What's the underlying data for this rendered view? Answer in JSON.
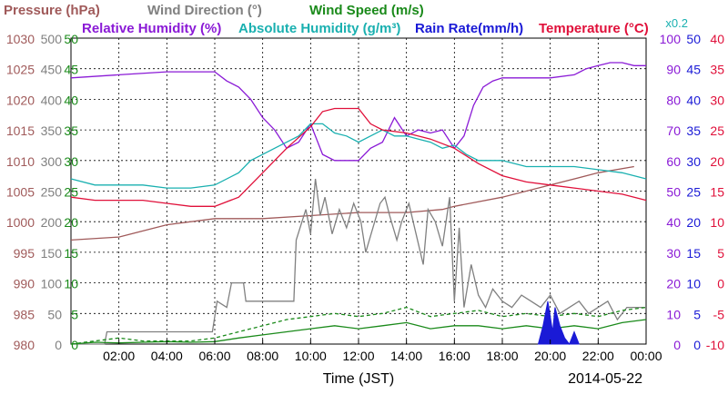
{
  "chart_data": {
    "type": "line",
    "date": "2014-05-22",
    "xlabel": "Time (JST)",
    "x_ticks": [
      "02:00",
      "04:00",
      "06:00",
      "08:00",
      "10:00",
      "12:00",
      "14:00",
      "16:00",
      "18:00",
      "20:00",
      "22:00",
      "00:00"
    ],
    "xlim": [
      0,
      24
    ],
    "grid": true,
    "legend": [
      {
        "label": "Pressure (hPa)",
        "color": "#a05a5a"
      },
      {
        "label": "Wind Direction (°)",
        "color": "#808080"
      },
      {
        "label": "Wind Speed (m/s)",
        "color": "#1a8a1a"
      },
      {
        "label": "Relative Humidity (%)",
        "color": "#8a1ad6"
      },
      {
        "label": "Absolute Humidity (g/m³)",
        "color": "#1ab0b0"
      },
      {
        "label": "Rain Rate(mm/h)",
        "color": "#1a1ad6"
      },
      {
        "label": "Temperature (°C)",
        "color": "#e0103a"
      }
    ],
    "abs_humidity_scale_note": "x0.2",
    "axes": {
      "pressure": {
        "ylim": [
          980,
          1030
        ],
        "ticks": [
          "980",
          "985",
          "990",
          "995",
          "1000",
          "1005",
          "1010",
          "1015",
          "1020",
          "1025",
          "1030"
        ],
        "color": "#a05a5a"
      },
      "wind_direction": {
        "ylim": [
          0,
          500
        ],
        "ticks": [
          "0",
          "50",
          "100",
          "150",
          "200",
          "250",
          "300",
          "350",
          "400",
          "450",
          "500"
        ],
        "color": "#808080"
      },
      "wind_speed": {
        "ylim": [
          0,
          50
        ],
        "ticks": [
          "0",
          "5",
          "10",
          "15",
          "20",
          "25",
          "30",
          "35",
          "40",
          "45",
          "50"
        ],
        "color": "#1a8a1a"
      },
      "relative_humidity": {
        "ylim": [
          0,
          100
        ],
        "ticks": [
          "0",
          "10",
          "20",
          "30",
          "40",
          "50",
          "60",
          "70",
          "80",
          "90",
          "100"
        ],
        "color": "#8a1ad6"
      },
      "rain_rate": {
        "ylim": [
          0,
          50
        ],
        "ticks": [
          "0",
          "5",
          "10",
          "15",
          "20",
          "25",
          "30",
          "35",
          "40",
          "45",
          "50"
        ],
        "color": "#1a1ad6"
      },
      "temperature": {
        "ylim": [
          -10,
          40
        ],
        "ticks": [
          "-10",
          "-5",
          "0",
          "5",
          "10",
          "15",
          "20",
          "25",
          "30",
          "35",
          "40"
        ],
        "color": "#e0103a"
      }
    },
    "series": [
      {
        "name": "Pressure (hPa)",
        "axis": "pressure",
        "color": "#a05a5a",
        "x": [
          0,
          2,
          4,
          6,
          8,
          10,
          12,
          14,
          15.5,
          16,
          18,
          20,
          22,
          23.5
        ],
        "y": [
          997,
          997.5,
          999.5,
          1000.5,
          1000.5,
          1001,
          1001.5,
          1001.5,
          1002,
          1002.5,
          1004,
          1006,
          1008,
          1009
        ]
      },
      {
        "name": "Wind Direction (°)",
        "axis": "wind_direction",
        "color": "#808080",
        "x": [
          0,
          1.4,
          1.5,
          2.8,
          5.9,
          6.1,
          6.5,
          6.7,
          7.2,
          7.3,
          7.9,
          8.1,
          9.3,
          9.4,
          9.8,
          10.0,
          10.2,
          10.4,
          10.6,
          10.9,
          11.2,
          11.5,
          11.8,
          12.1,
          12.3,
          12.6,
          12.9,
          13.1,
          13.3,
          13.6,
          13.8,
          14.1,
          14.4,
          14.7,
          14.9,
          15.2,
          15.5,
          15.8,
          16.0,
          16.2,
          16.4,
          16.7,
          17.0,
          17.3,
          17.6,
          18.0,
          18.4,
          18.8,
          19.2,
          19.6,
          20.0,
          20.4,
          20.8,
          21.2,
          21.6,
          22.0,
          22.4,
          22.8,
          23.2,
          23.6,
          24
        ],
        "y": [
          0,
          0,
          20,
          20,
          20,
          70,
          60,
          100,
          100,
          70,
          70,
          70,
          70,
          170,
          220,
          180,
          270,
          210,
          240,
          180,
          220,
          190,
          230,
          200,
          150,
          190,
          230,
          240,
          210,
          170,
          200,
          230,
          180,
          130,
          220,
          200,
          160,
          240,
          70,
          190,
          60,
          130,
          80,
          60,
          90,
          70,
          60,
          80,
          70,
          60,
          80,
          50,
          60,
          70,
          50,
          60,
          70,
          40,
          60,
          60,
          60
        ]
      },
      {
        "name": "Wind Speed (m/s)",
        "axis": "wind_speed",
        "color": "#1a8a1a",
        "x": [
          0,
          1,
          2,
          3,
          4,
          5,
          6,
          7,
          8,
          9,
          10,
          11,
          12,
          13,
          14,
          15,
          16,
          17,
          18,
          19,
          20,
          21,
          22,
          23,
          24
        ],
        "y": [
          0,
          0.3,
          0.2,
          0.3,
          0.4,
          0.3,
          0.4,
          1.0,
          1.5,
          2.0,
          2.5,
          3.0,
          2.5,
          3.0,
          3.5,
          2.5,
          3.0,
          3.0,
          2.5,
          3.0,
          2.5,
          3.0,
          2.5,
          3.5,
          4.0
        ]
      },
      {
        "name": "Wind Speed gust (m/s)",
        "axis": "wind_speed",
        "color": "#1a8a1a",
        "dashed": true,
        "x": [
          0,
          1,
          2,
          3,
          4,
          5,
          6,
          7,
          8,
          9,
          10,
          11,
          12,
          13,
          14,
          15,
          16,
          17,
          18,
          19,
          20,
          21,
          22,
          23,
          24
        ],
        "y": [
          0,
          0.5,
          1.0,
          0.5,
          0.5,
          0.5,
          1.0,
          2.0,
          3.0,
          4.0,
          4.5,
          5.0,
          4.5,
          5.0,
          6.0,
          4.5,
          5.0,
          5.5,
          4.5,
          5.0,
          4.5,
          5.0,
          4.5,
          5.5,
          6.0
        ]
      },
      {
        "name": "Relative Humidity (%)",
        "axis": "relative_humidity",
        "color": "#8a1ad6",
        "x": [
          0,
          2,
          4,
          6,
          6.5,
          7,
          7.5,
          8,
          8.5,
          9,
          9.5,
          10,
          10.5,
          11,
          11.5,
          12,
          12.5,
          13,
          13.5,
          14,
          14.5,
          15,
          15.5,
          16,
          16.4,
          16.8,
          17.2,
          17.6,
          18,
          19,
          20,
          21,
          21.5,
          22,
          22.5,
          23,
          23.5,
          24
        ],
        "y": [
          87,
          88,
          89,
          89,
          86,
          84,
          80,
          74,
          70,
          64,
          66,
          72,
          62,
          60,
          60,
          60,
          64,
          66,
          74,
          68,
          70,
          69,
          70,
          64,
          68,
          78,
          84,
          86,
          87,
          87,
          87,
          88,
          90,
          91,
          92,
          92,
          91,
          91
        ]
      },
      {
        "name": "Absolute Humidity (g/m³)",
        "axis": "relative_humidity",
        "color": "#1ab0b0",
        "x": [
          0,
          1,
          2,
          3,
          4,
          5,
          6,
          7,
          7.5,
          8,
          8.5,
          9,
          9.5,
          10,
          10.5,
          11,
          11.5,
          12,
          12.5,
          13,
          13.5,
          14,
          14.5,
          15,
          15.5,
          16,
          16.5,
          17,
          18,
          19,
          20,
          21,
          22,
          23,
          24
        ],
        "y": [
          54,
          52,
          52,
          52,
          51,
          51,
          52,
          56,
          60,
          62,
          64,
          66,
          68,
          72,
          72,
          69,
          68,
          66,
          68,
          70,
          68,
          68,
          67,
          66,
          64,
          65,
          62,
          60,
          60,
          58,
          58,
          58,
          57,
          56,
          54
        ]
      },
      {
        "name": "Rain Rate(mm/h)",
        "axis": "rain_rate",
        "color": "#1a1ad6",
        "x": [
          19.5,
          19.7,
          19.9,
          20.1,
          20.2,
          20.4,
          20.6,
          20.8,
          21.0,
          21.2
        ],
        "y": [
          0,
          3,
          7,
          2,
          6,
          3,
          1,
          0,
          2,
          0
        ]
      },
      {
        "name": "Temperature (°C)",
        "axis": "temperature",
        "color": "#e0103a",
        "x": [
          0,
          1,
          2,
          3,
          4,
          5,
          6,
          7,
          8,
          9,
          10,
          10.5,
          11,
          11.5,
          12,
          12.5,
          13,
          14,
          15,
          16,
          17,
          18,
          19,
          20,
          21,
          22,
          23,
          24
        ],
        "y": [
          14,
          13.5,
          13.5,
          13.5,
          13,
          12.5,
          12.5,
          14,
          18,
          22,
          25.5,
          28,
          28.5,
          28.5,
          28.5,
          26,
          25,
          24.5,
          23.5,
          22,
          19.5,
          17.5,
          16.5,
          16,
          15.5,
          15,
          14.5,
          13.5
        ]
      }
    ]
  }
}
